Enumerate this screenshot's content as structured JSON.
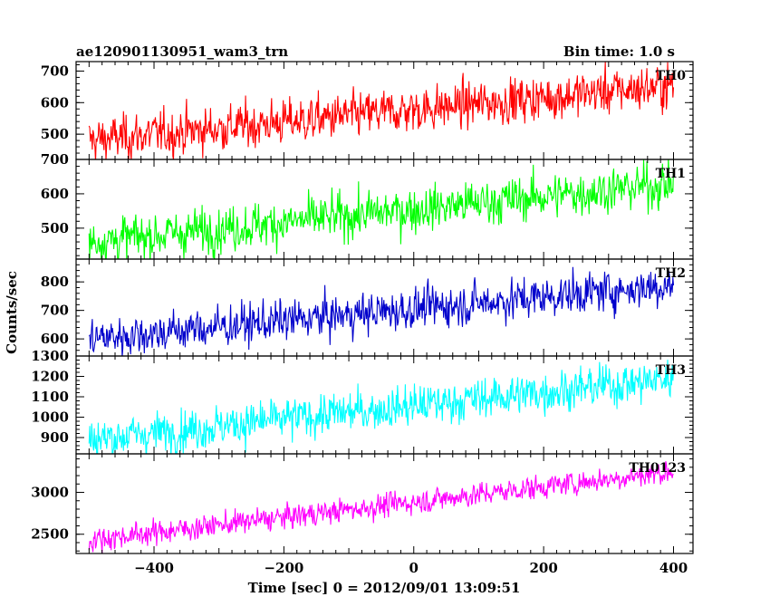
{
  "chart_data": {
    "type": "line",
    "title_left": "ae120901130951_wam3_trn",
    "title_right": "Bin time: 1.0 s",
    "xlabel": "Time [sec] 0 = 2012/09/01 13:09:51",
    "ylabel": "Counts/sec",
    "xlim": [
      -520,
      430
    ],
    "x_ticks": [
      -400,
      -200,
      0,
      200,
      400
    ],
    "x_tick_labels": [
      "−400",
      "−200",
      "0",
      "200",
      "400"
    ],
    "x_range_data": [
      -500,
      400
    ],
    "bin_time": 1.0,
    "series": [
      {
        "name": "TH0",
        "color": "#ff0000",
        "ylim": [
          420,
          730
        ],
        "y_ticks": [
          500,
          600,
          700
        ],
        "y_tick_labels": [
          "500",
          "600",
          "700"
        ],
        "trend_start": 480,
        "trend_end": 655,
        "noise": 35
      },
      {
        "name": "TH1",
        "color": "#00ff00",
        "ylim": [
          410,
          700
        ],
        "y_ticks": [
          500,
          600,
          700
        ],
        "y_tick_labels": [
          "500",
          "600",
          "700"
        ],
        "trend_start": 460,
        "trend_end": 630,
        "noise": 32
      },
      {
        "name": "TH2",
        "color": "#0000cc",
        "ylim": [
          540,
          880
        ],
        "y_ticks": [
          600,
          700,
          800
        ],
        "y_tick_labels": [
          "600",
          "700",
          "800"
        ],
        "trend_start": 600,
        "trend_end": 790,
        "noise": 35
      },
      {
        "name": "TH3",
        "color": "#00ffff",
        "ylim": [
          820,
          1300
        ],
        "y_ticks": [
          900,
          1000,
          1100,
          1200,
          1300
        ],
        "y_tick_labels": [
          "900",
          "1000",
          "1100",
          "1200",
          "1300"
        ],
        "trend_start": 890,
        "trend_end": 1190,
        "noise": 50
      },
      {
        "name": "TH0123",
        "color": "#ff00ff",
        "ylim": [
          2270,
          3460
        ],
        "y_ticks": [
          2500,
          3000
        ],
        "y_tick_labels": [
          "2500",
          "3000"
        ],
        "trend_start": 2430,
        "trend_end": 3250,
        "noise": 70
      }
    ]
  }
}
